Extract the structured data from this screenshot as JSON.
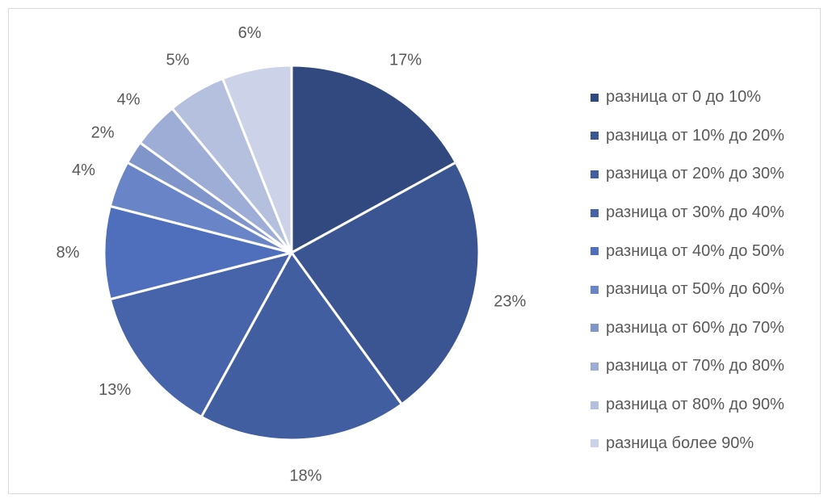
{
  "chart_data": {
    "type": "pie",
    "series": [
      {
        "name": "разница от 0 до 10%",
        "label": "17%",
        "value": 17,
        "color": "#31497f"
      },
      {
        "name": "разница от 10% до 20%",
        "label": "23%",
        "value": 23,
        "color": "#3a5591"
      },
      {
        "name": "разница от 20% до 30%",
        "label": "18%",
        "value": 18,
        "color": "#415ea0"
      },
      {
        "name": "разница от 30% до 40%",
        "label": "13%",
        "value": 13,
        "color": "#4764aa"
      },
      {
        "name": "разница от 40% до 50%",
        "label": "8%",
        "value": 8,
        "color": "#4f6fbd"
      },
      {
        "name": "разница от 50% до 60%",
        "label": "4%",
        "value": 4,
        "color": "#6a85c7"
      },
      {
        "name": "разница от 60% до 70%",
        "label": "2%",
        "value": 2,
        "color": "#8095c9"
      },
      {
        "name": "разница от 70% до 80%",
        "label": "4%",
        "value": 4,
        "color": "#9eadd5"
      },
      {
        "name": "разница от 80% до 90%",
        "label": "5%",
        "value": 5,
        "color": "#b5c0de"
      },
      {
        "name": "разница более 90%",
        "label": "6%",
        "value": 6,
        "color": "#ccd3e8"
      }
    ],
    "legend_position": "right"
  }
}
